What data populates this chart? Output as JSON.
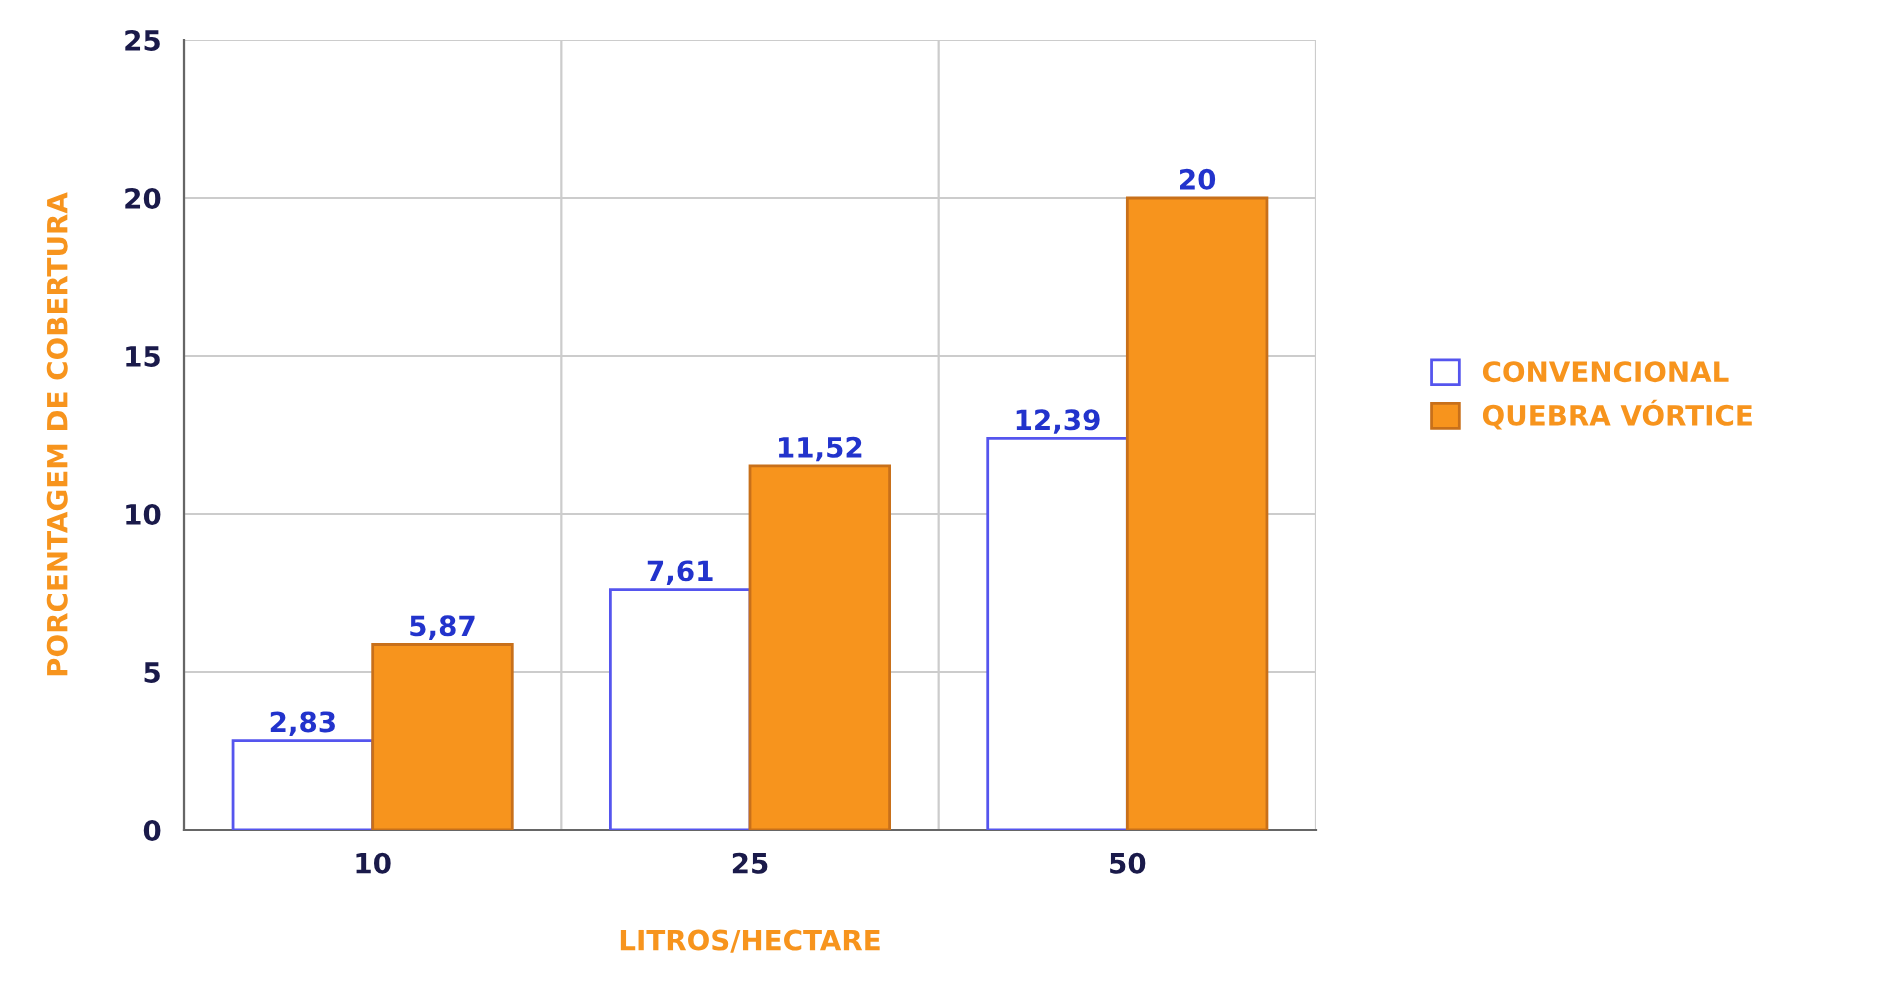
{
  "chart_data": {
    "type": "bar",
    "xlabel": "LITROS/HECTARE",
    "ylabel": "PORCENTAGEM DE COBERTURA",
    "categories": [
      "10",
      "25",
      "50"
    ],
    "series": [
      {
        "name": "CONVENCIONAL",
        "color": "#ffffff",
        "values": [
          2.83,
          7.61,
          12.39
        ],
        "value_labels": [
          "2,83",
          "7,61",
          "12,39"
        ]
      },
      {
        "name": "QUEBRA VÓRTICE",
        "color": "#f7941d",
        "values": [
          5.87,
          11.52,
          20
        ],
        "value_labels": [
          "5,87",
          "11,52",
          "20"
        ]
      }
    ],
    "ylim": [
      0,
      25
    ],
    "yticks": [
      0,
      5,
      10,
      15,
      20,
      25
    ],
    "grid": true,
    "legend": "right"
  }
}
